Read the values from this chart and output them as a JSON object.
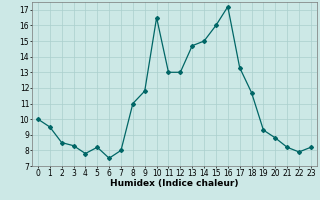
{
  "x": [
    0,
    1,
    2,
    3,
    4,
    5,
    6,
    7,
    8,
    9,
    10,
    11,
    12,
    13,
    14,
    15,
    16,
    17,
    18,
    19,
    20,
    21,
    22,
    23
  ],
  "y": [
    10,
    9.5,
    8.5,
    8.3,
    7.8,
    8.2,
    7.5,
    8.0,
    11.0,
    11.8,
    16.5,
    13.0,
    13.0,
    14.7,
    15.0,
    16.0,
    17.2,
    13.3,
    11.7,
    9.3,
    8.8,
    8.2,
    7.9,
    8.2
  ],
  "line_color": "#006666",
  "marker": "D",
  "markersize": 2.0,
  "linewidth": 0.9,
  "xlabel": "Humidex (Indice chaleur)",
  "xlim": [
    -0.5,
    23.5
  ],
  "ylim": [
    7,
    17.5
  ],
  "yticks": [
    7,
    8,
    9,
    10,
    11,
    12,
    13,
    14,
    15,
    16,
    17
  ],
  "xticks": [
    0,
    1,
    2,
    3,
    4,
    5,
    6,
    7,
    8,
    9,
    10,
    11,
    12,
    13,
    14,
    15,
    16,
    17,
    18,
    19,
    20,
    21,
    22,
    23
  ],
  "background_color": "#cce8e6",
  "grid_color": "#aacfcd",
  "tick_fontsize": 5.5,
  "xlabel_fontsize": 6.5,
  "xlabel_fontweight": "bold"
}
